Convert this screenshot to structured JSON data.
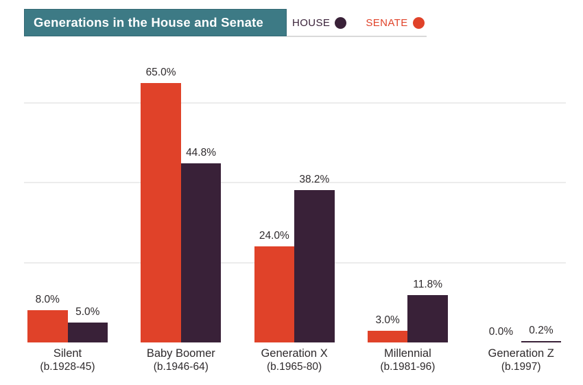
{
  "header": {
    "title": "Generations in the House and Senate",
    "legend": [
      {
        "label": "HOUSE",
        "color": "#392138"
      },
      {
        "label": "SENATE",
        "color": "#E04229"
      }
    ]
  },
  "chart_data": {
    "type": "bar",
    "title": "Generations in the House and Senate",
    "categories": [
      {
        "name": "Silent",
        "sub": "(b.1928-45)"
      },
      {
        "name": "Baby Boomer",
        "sub": "(b.1946-64)"
      },
      {
        "name": "Generation X",
        "sub": "(b.1965-80)"
      },
      {
        "name": "Millennial",
        "sub": "(b.1981-96)"
      },
      {
        "name": "Generation Z",
        "sub": "(b.1997)"
      }
    ],
    "series": [
      {
        "name": "SENATE",
        "color": "#E04229",
        "values": [
          8.0,
          65.0,
          24.0,
          3.0,
          0.0
        ]
      },
      {
        "name": "HOUSE",
        "color": "#392138",
        "values": [
          5.0,
          44.8,
          38.2,
          11.8,
          0.2
        ]
      }
    ],
    "value_suffix": "%",
    "value_decimals": 1,
    "xlabel": "",
    "ylabel": "",
    "ylim": [
      0,
      68
    ],
    "gridlines": [
      20,
      40,
      60
    ],
    "grid": true,
    "legend_position": "top-right",
    "colors": {
      "grid": "#ececec",
      "text": "#2e2a2c",
      "header_bg": "#3D7A85"
    }
  }
}
